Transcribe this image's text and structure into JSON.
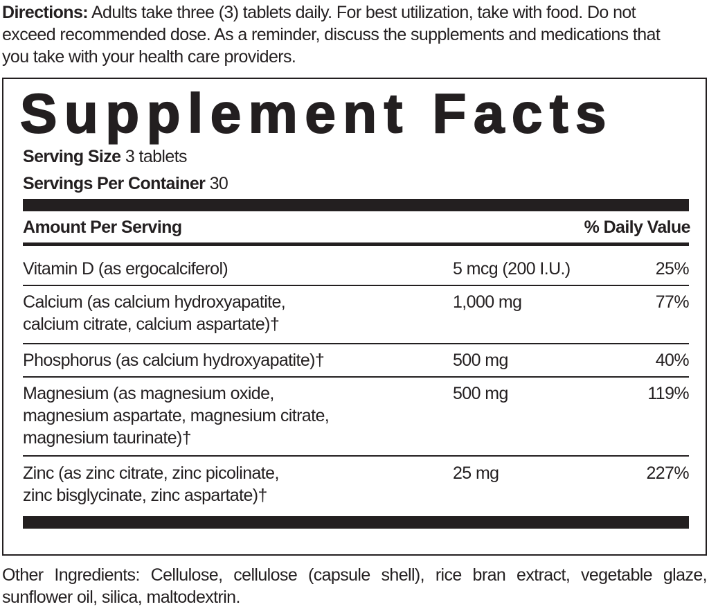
{
  "directions": {
    "label": "Directions:",
    "line1": " Adults take three (3) tablets daily. For best utilization, take with food.  Do not",
    "line2": "exceed recommended dose. As a reminder, discuss the supplements and medications that",
    "line3": "you take with your health care providers."
  },
  "facts": {
    "title": "Supplement Facts",
    "serving_size_label": "Serving Size",
    "serving_size": " 3 tablets",
    "servings_label": "Servings Per Container",
    "servings": " 30",
    "amount_header": "Amount Per Serving",
    "dv_header": "% Daily Value",
    "rows": [
      {
        "name": [
          "Vitamin D (as ergocalciferol)"
        ],
        "amount": "5 mcg (200 I.U.)",
        "dv": "25%"
      },
      {
        "name": [
          "Calcium (as calcium hydroxyapatite,",
          "calcium citrate, calcium aspartate)†"
        ],
        "amount": "1,000 mg",
        "dv": "77%"
      },
      {
        "name": [
          "Phosphorus (as calcium hydroxyapatite)†"
        ],
        "amount": "500 mg",
        "dv": "40%"
      },
      {
        "name": [
          "Magnesium (as magnesium oxide,",
          "magnesium aspartate, magnesium citrate,",
          "magnesium taurinate)†"
        ],
        "amount": "500 mg",
        "dv": "119%"
      },
      {
        "name": [
          "Zinc (as zinc citrate, zinc picolinate,",
          "zinc bisglycinate, zinc aspartate)†"
        ],
        "amount": "25 mg",
        "dv": "227%"
      }
    ]
  },
  "other_ingredients": {
    "line1": "Other Ingredients: Cellulose, cellulose (capsule shell), rice bran extract, vegetable glaze,",
    "line2": "sunflower oil, silica, maltodextrin."
  }
}
